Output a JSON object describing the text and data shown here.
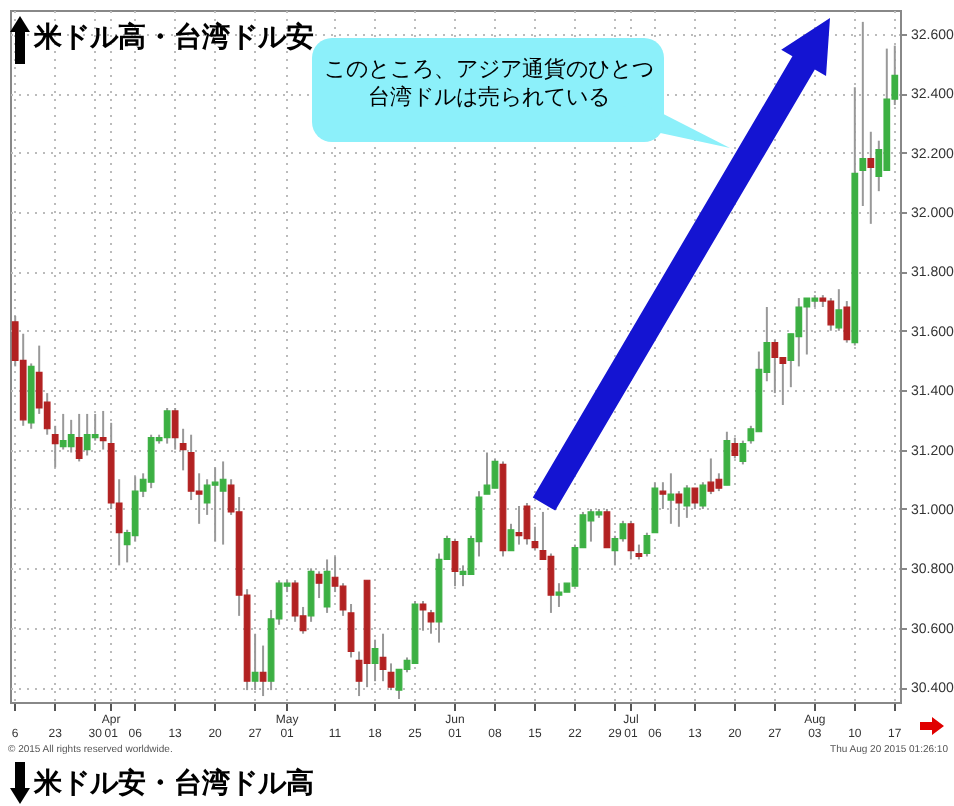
{
  "chart_data": {
    "type": "candlestick",
    "annotations": [
      "米ドル高・台湾ドル安",
      "このところ、アジア通貨のひとつ台湾ドルは売られている",
      "© 2015 All rights reserved worldwide.",
      "Thu Aug 20 2015 01:26:10",
      "米ドル安・台湾ドル高"
    ],
    "categories": [
      "6",
      null,
      null,
      null,
      null,
      "23",
      null,
      null,
      null,
      null,
      "30",
      null,
      "Apr\n01",
      null,
      null,
      "06",
      null,
      null,
      null,
      null,
      "13",
      null,
      null,
      null,
      null,
      "20",
      null,
      null,
      null,
      null,
      "27",
      null,
      null,
      null,
      "May\n01",
      null,
      null,
      null,
      null,
      null,
      "11",
      null,
      null,
      null,
      null,
      "18",
      null,
      null,
      null,
      null,
      "25",
      null,
      null,
      null,
      null,
      "Jun\n01",
      null,
      null,
      null,
      null,
      "08",
      null,
      null,
      null,
      null,
      "15",
      null,
      null,
      null,
      null,
      "22",
      null,
      null,
      null,
      null,
      "29",
      null,
      "Jul\n01",
      null,
      null,
      "06",
      null,
      null,
      null,
      null,
      "13",
      null,
      null,
      null,
      null,
      "20",
      null,
      null,
      null,
      null,
      "27",
      null,
      null,
      null,
      null,
      "Aug\n03",
      null,
      null,
      null,
      null,
      "10",
      null,
      null,
      null,
      null,
      "17"
    ],
    "ohlc": [
      [
        31.63,
        31.65,
        31.48,
        31.5
      ],
      [
        31.5,
        31.59,
        31.28,
        31.3
      ],
      [
        31.29,
        31.49,
        31.27,
        31.48
      ],
      [
        31.46,
        31.55,
        31.32,
        31.34
      ],
      [
        31.36,
        31.39,
        31.25,
        31.27
      ],
      [
        31.25,
        31.28,
        31.14,
        31.22
      ],
      [
        31.21,
        31.32,
        31.2,
        31.23
      ],
      [
        31.21,
        31.3,
        31.19,
        31.25
      ],
      [
        31.24,
        31.32,
        31.16,
        31.17
      ],
      [
        31.2,
        31.32,
        31.18,
        31.25
      ],
      [
        31.24,
        31.32,
        31.23,
        31.25
      ],
      [
        31.24,
        31.33,
        31.2,
        31.23
      ],
      [
        31.22,
        31.29,
        31.0,
        31.02
      ],
      [
        31.02,
        31.1,
        30.81,
        30.92
      ],
      [
        30.88,
        30.93,
        30.82,
        30.92
      ],
      [
        30.91,
        31.11,
        30.89,
        31.06
      ],
      [
        31.06,
        31.12,
        31.04,
        31.1
      ],
      [
        31.09,
        31.25,
        31.07,
        31.24
      ],
      [
        31.23,
        31.25,
        31.22,
        31.24
      ],
      [
        31.24,
        31.34,
        31.22,
        31.33
      ],
      [
        31.33,
        31.34,
        31.2,
        31.24
      ],
      [
        31.22,
        31.27,
        31.13,
        31.2
      ],
      [
        31.19,
        31.25,
        31.03,
        31.06
      ],
      [
        31.06,
        31.12,
        30.95,
        31.05
      ],
      [
        31.02,
        31.1,
        30.98,
        31.08
      ],
      [
        31.08,
        31.14,
        30.89,
        31.09
      ],
      [
        31.06,
        31.16,
        30.88,
        31.1
      ],
      [
        31.08,
        31.1,
        30.98,
        30.99
      ],
      [
        30.99,
        31.04,
        30.64,
        30.71
      ],
      [
        30.71,
        30.73,
        30.39,
        30.42
      ],
      [
        30.42,
        30.58,
        30.39,
        30.45
      ],
      [
        30.45,
        30.54,
        30.37,
        30.42
      ],
      [
        30.42,
        30.66,
        30.39,
        30.63
      ],
      [
        30.63,
        30.76,
        30.61,
        30.75
      ],
      [
        30.74,
        30.76,
        30.72,
        30.75
      ],
      [
        30.75,
        30.76,
        30.62,
        30.64
      ],
      [
        30.64,
        30.67,
        30.58,
        30.59
      ],
      [
        30.64,
        30.8,
        30.62,
        30.79
      ],
      [
        30.78,
        30.79,
        30.7,
        30.75
      ],
      [
        30.67,
        30.83,
        30.65,
        30.79
      ],
      [
        30.77,
        30.84,
        30.72,
        30.74
      ],
      [
        30.74,
        30.75,
        30.64,
        30.66
      ],
      [
        30.65,
        30.68,
        30.5,
        30.52
      ],
      [
        30.49,
        30.52,
        30.37,
        30.42
      ],
      [
        30.76,
        30.76,
        30.4,
        30.48
      ],
      [
        30.48,
        30.56,
        30.42,
        30.53
      ],
      [
        30.5,
        30.58,
        30.42,
        30.46
      ],
      [
        30.45,
        30.48,
        30.39,
        30.4
      ],
      [
        30.39,
        30.46,
        30.36,
        30.46
      ],
      [
        30.46,
        30.5,
        30.45,
        30.49
      ],
      [
        30.48,
        30.69,
        30.48,
        30.68
      ],
      [
        30.68,
        30.69,
        30.59,
        30.66
      ],
      [
        30.65,
        30.66,
        30.58,
        30.62
      ],
      [
        30.62,
        30.85,
        30.55,
        30.83
      ],
      [
        30.83,
        30.91,
        30.83,
        30.9
      ],
      [
        30.89,
        30.9,
        30.74,
        30.79
      ],
      [
        30.78,
        30.81,
        30.74,
        30.79
      ],
      [
        30.78,
        30.91,
        30.78,
        30.9
      ],
      [
        30.89,
        31.06,
        30.84,
        31.04
      ],
      [
        31.05,
        31.19,
        31.05,
        31.08
      ],
      [
        31.07,
        31.17,
        31.07,
        31.16
      ],
      [
        31.15,
        31.16,
        30.84,
        30.86
      ],
      [
        30.86,
        30.95,
        30.86,
        30.93
      ],
      [
        30.92,
        31.01,
        30.88,
        30.91
      ],
      [
        31.01,
        31.02,
        30.88,
        30.9
      ],
      [
        30.89,
        30.94,
        30.86,
        30.87
      ],
      [
        30.86,
        30.99,
        30.83,
        30.83
      ],
      [
        30.84,
        30.85,
        30.65,
        30.71
      ],
      [
        30.71,
        30.75,
        30.67,
        30.72
      ],
      [
        30.72,
        30.75,
        30.72,
        30.75
      ],
      [
        30.74,
        30.88,
        30.74,
        30.87
      ],
      [
        30.87,
        30.99,
        30.87,
        30.98
      ],
      [
        30.96,
        31.0,
        30.89,
        30.99
      ],
      [
        30.98,
        31.0,
        30.97,
        30.99
      ],
      [
        30.99,
        31.0,
        30.87,
        30.87
      ],
      [
        30.86,
        30.91,
        30.81,
        30.9
      ],
      [
        30.9,
        30.96,
        30.89,
        30.95
      ],
      [
        30.95,
        30.96,
        30.83,
        30.86
      ],
      [
        30.85,
        30.88,
        30.83,
        30.84
      ],
      [
        30.85,
        30.92,
        30.84,
        30.91
      ],
      [
        30.92,
        31.09,
        30.92,
        31.07
      ],
      [
        31.06,
        31.09,
        31.0,
        31.05
      ],
      [
        31.03,
        31.12,
        30.95,
        31.05
      ],
      [
        31.05,
        31.06,
        30.94,
        31.02
      ],
      [
        31.01,
        31.08,
        30.97,
        31.07
      ],
      [
        31.07,
        31.07,
        31.0,
        31.02
      ],
      [
        31.01,
        31.09,
        31.0,
        31.08
      ],
      [
        31.09,
        31.17,
        31.05,
        31.06
      ],
      [
        31.1,
        31.12,
        31.06,
        31.07
      ],
      [
        31.08,
        31.26,
        31.08,
        31.23
      ],
      [
        31.22,
        31.24,
        31.17,
        31.18
      ],
      [
        31.16,
        31.23,
        31.15,
        31.22
      ],
      [
        31.23,
        31.28,
        31.22,
        31.27
      ],
      [
        31.26,
        31.53,
        31.26,
        31.47
      ],
      [
        31.46,
        31.68,
        31.43,
        31.56
      ],
      [
        31.56,
        31.57,
        31.39,
        31.51
      ],
      [
        31.51,
        31.51,
        31.35,
        31.49
      ],
      [
        31.5,
        31.59,
        31.41,
        31.59
      ],
      [
        31.58,
        31.71,
        31.48,
        31.68
      ],
      [
        31.68,
        31.71,
        31.52,
        31.71
      ],
      [
        31.7,
        31.72,
        31.68,
        31.71
      ],
      [
        31.71,
        31.72,
        31.68,
        31.7
      ],
      [
        31.7,
        31.71,
        31.6,
        31.62
      ],
      [
        31.61,
        31.74,
        31.6,
        31.67
      ],
      [
        31.68,
        31.7,
        31.56,
        31.57
      ],
      [
        31.56,
        32.42,
        31.55,
        32.13
      ],
      [
        32.14,
        32.64,
        32.02,
        32.18
      ],
      [
        32.18,
        32.27,
        31.96,
        32.15
      ],
      [
        32.12,
        32.24,
        32.07,
        32.21
      ],
      [
        32.14,
        32.55,
        32.14,
        32.38
      ],
      [
        32.38,
        32.56,
        32.36,
        32.46
      ]
    ],
    "colors": [
      "#b22222",
      "#b22222",
      "#3cb043",
      "#b22222",
      "#b22222",
      "#b22222",
      "#3cb043",
      "#3cb043",
      "#b22222",
      "#3cb043",
      "#3cb043",
      "#b22222",
      "#b22222",
      "#b22222",
      "#3cb043",
      "#3cb043",
      "#3cb043",
      "#3cb043",
      "#3cb043",
      "#3cb043",
      "#b22222",
      "#b22222",
      "#b22222",
      "#b22222",
      "#3cb043",
      "#3cb043",
      "#3cb043",
      "#b22222",
      "#b22222",
      "#b22222",
      "#3cb043",
      "#b22222",
      "#3cb043",
      "#3cb043",
      "#3cb043",
      "#b22222",
      "#b22222",
      "#3cb043",
      "#b22222",
      "#3cb043",
      "#b22222",
      "#b22222",
      "#b22222",
      "#b22222",
      "#b22222",
      "#3cb043",
      "#b22222",
      "#b22222",
      "#3cb043",
      "#3cb043",
      "#3cb043",
      "#b22222",
      "#b22222",
      "#3cb043",
      "#3cb043",
      "#b22222",
      "#3cb043",
      "#3cb043",
      "#3cb043",
      "#3cb043",
      "#3cb043",
      "#b22222",
      "#3cb043",
      "#b22222",
      "#b22222",
      "#b22222",
      "#b22222",
      "#b22222",
      "#3cb043",
      "#3cb043",
      "#3cb043",
      "#3cb043",
      "#3cb043",
      "#3cb043",
      "#b22222",
      "#3cb043",
      "#3cb043",
      "#b22222",
      "#b22222",
      "#3cb043",
      "#3cb043",
      "#b22222",
      "#3cb043",
      "#b22222",
      "#3cb043",
      "#b22222",
      "#3cb043",
      "#b22222",
      "#b22222",
      "#3cb043",
      "#b22222",
      "#3cb043",
      "#3cb043",
      "#3cb043",
      "#3cb043",
      "#b22222",
      "#b22222",
      "#3cb043",
      "#3cb043",
      "#3cb043",
      "#3cb043",
      "#b22222",
      "#b22222",
      "#3cb043",
      "#b22222",
      "#3cb043",
      "#3cb043",
      "#b22222",
      "#3cb043",
      "#3cb043",
      "#3cb043"
    ],
    "ylim": [
      30.35,
      32.68
    ],
    "yticks": [
      {
        "value": 30.4,
        "label": "30.400"
      },
      {
        "value": 30.6,
        "label": "30.600"
      },
      {
        "value": 30.8,
        "label": "30.800"
      },
      {
        "value": 31.0,
        "label": "31.000"
      },
      {
        "value": 31.2,
        "label": "31.200"
      },
      {
        "value": 31.4,
        "label": "31.400"
      },
      {
        "value": 31.6,
        "label": "31.600"
      },
      {
        "value": 31.8,
        "label": "31.800"
      },
      {
        "value": 32.0,
        "label": "32.000"
      },
      {
        "value": 32.2,
        "label": "32.200"
      },
      {
        "value": 32.4,
        "label": "32.400"
      },
      {
        "value": 32.6,
        "label": "32.600"
      }
    ],
    "grid": true
  }
}
